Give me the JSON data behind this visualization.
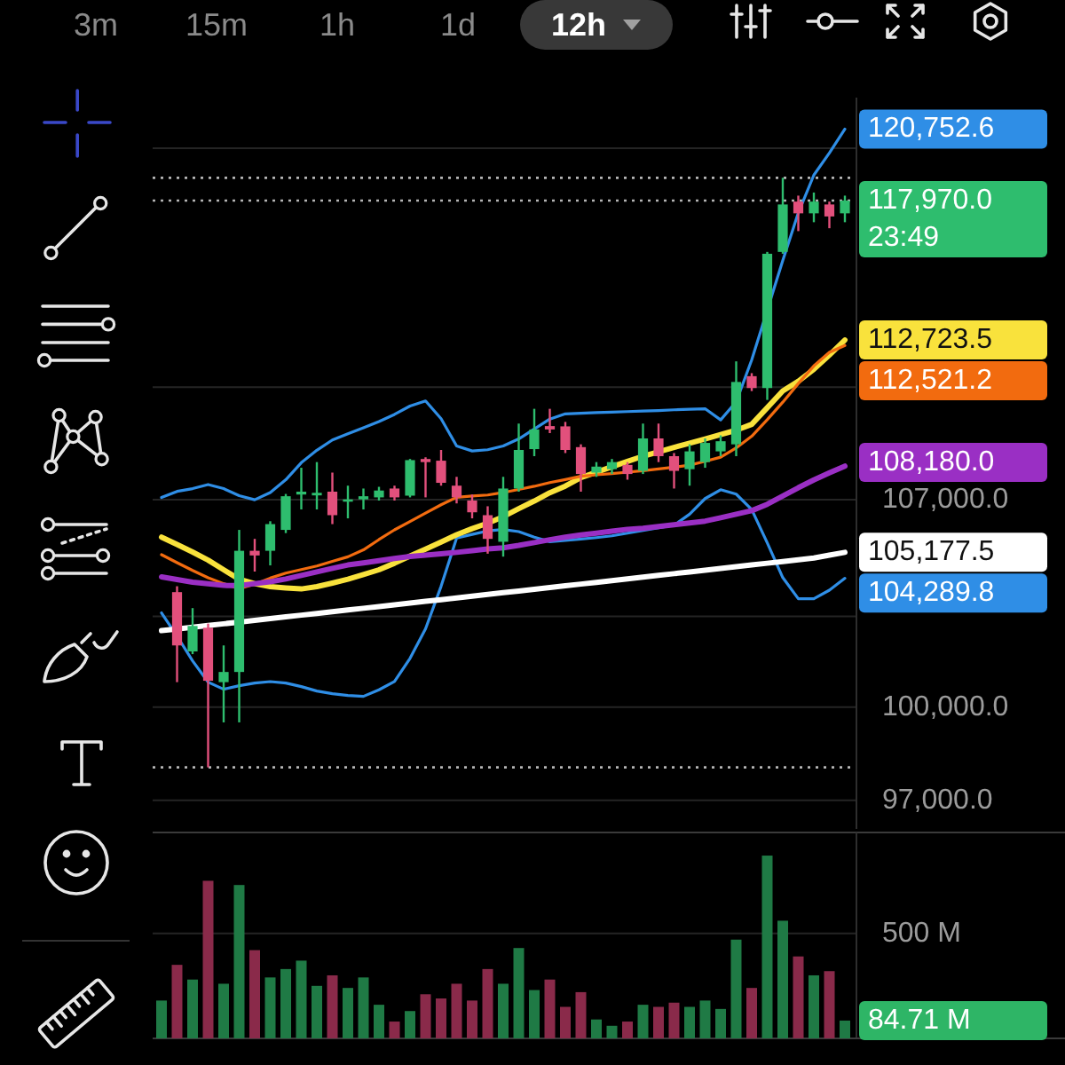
{
  "chart_data": [
    {
      "type": "candlestick",
      "categories": [
        null,
        null,
        null,
        null,
        null,
        null,
        null,
        null,
        null,
        null,
        null,
        null,
        null,
        null,
        null,
        null,
        null,
        null,
        null,
        null,
        null,
        null,
        null,
        null,
        null,
        null,
        null,
        null,
        null,
        null,
        null,
        null,
        null,
        null,
        null,
        null,
        null,
        null,
        null,
        null,
        null,
        null,
        null,
        null,
        null
      ],
      "ohlc": [
        null,
        [
          103820,
          104020,
          100815,
          102030
        ],
        [
          101830,
          103280,
          101740,
          102680
        ],
        [
          102620,
          102760,
          98050,
          100860
        ],
        [
          100815,
          102030,
          99500,
          101150
        ],
        [
          101150,
          105950,
          99500,
          105230
        ],
        [
          105230,
          105640,
          104520,
          105070
        ],
        [
          105230,
          106250,
          104730,
          106150
        ],
        [
          105950,
          107200,
          105840,
          107120
        ],
        [
          107180,
          108120,
          106660,
          107280
        ],
        [
          107150,
          108320,
          106660,
          107240
        ],
        [
          107280,
          107950,
          106150,
          106460
        ],
        [
          106930,
          107490,
          106350,
          107010
        ],
        [
          107010,
          107390,
          106660,
          107120
        ],
        [
          107080,
          107450,
          106970,
          107320
        ],
        [
          107390,
          107490,
          106970,
          107080
        ],
        [
          107140,
          108430,
          107080,
          108390
        ],
        [
          108430,
          108490,
          107080,
          108320
        ],
        [
          108370,
          108750,
          107490,
          107590
        ],
        [
          107490,
          107800,
          106870,
          107080
        ],
        [
          106970,
          107180,
          106350,
          106560
        ],
        [
          106460,
          106770,
          105130,
          105640
        ],
        [
          105540,
          107800,
          105030,
          107390
        ],
        [
          107390,
          109690,
          107280,
          108750
        ],
        [
          108780,
          110220,
          108530,
          109480
        ],
        [
          109600,
          110220,
          109350,
          109480
        ],
        [
          109590,
          109750,
          108640,
          108750
        ],
        [
          108850,
          108950,
          107280,
          107900
        ],
        [
          107950,
          108320,
          107800,
          108160
        ],
        [
          108070,
          108430,
          107900,
          108320
        ],
        [
          108220,
          108320,
          107700,
          107900
        ],
        [
          108010,
          109690,
          107900,
          109160
        ],
        [
          109160,
          109690,
          108320,
          108530
        ],
        [
          108530,
          108640,
          107390,
          108010
        ],
        [
          108070,
          108950,
          107490,
          108700
        ],
        [
          108320,
          109160,
          108120,
          109000
        ],
        [
          108700,
          109270,
          108530,
          109060
        ],
        [
          108950,
          111940,
          108530,
          111190
        ],
        [
          111400,
          111510,
          110860,
          110970
        ],
        [
          110970,
          116010,
          110540,
          115940
        ],
        [
          116010,
          118850,
          115940,
          117820
        ],
        [
          117930,
          118160,
          116800,
          117480
        ],
        [
          117480,
          118280,
          117140,
          117930
        ],
        [
          117820,
          117930,
          116910,
          117360
        ],
        [
          117480,
          118160,
          117140,
          117970
        ]
      ],
      "colors": [
        null,
        "#e2507c",
        "#2ebd6e",
        "#e2507c",
        "#2ebd6e",
        "#2ebd6e",
        "#e2507c",
        "#2ebd6e",
        "#2ebd6e",
        "#2ebd6e",
        "#2ebd6e",
        "#e2507c",
        "#2ebd6e",
        "#2ebd6e",
        "#2ebd6e",
        "#e2507c",
        "#2ebd6e",
        "#e2507c",
        "#e2507c",
        "#e2507c",
        "#e2507c",
        "#e2507c",
        "#2ebd6e",
        "#2ebd6e",
        "#2ebd6e",
        "#e2507c",
        "#e2507c",
        "#e2507c",
        "#2ebd6e",
        "#2ebd6e",
        "#e2507c",
        "#2ebd6e",
        "#e2507c",
        "#e2507c",
        "#2ebd6e",
        "#2ebd6e",
        "#2ebd6e",
        "#2ebd6e",
        "#e2507c",
        "#2ebd6e",
        "#2ebd6e",
        "#e2507c",
        "#2ebd6e",
        "#e2507c",
        "#2ebd6e"
      ],
      "series": [
        {
          "type": "line",
          "color": "#2f8ee6",
          "values": [
            107076,
            107290,
            107386,
            107530,
            107386,
            107138,
            106996,
            107250,
            107698,
            108300,
            108740,
            109105,
            109327,
            109541,
            109764,
            110018,
            110319,
            110504,
            109866,
            108890,
            108714,
            108758,
            108890,
            109143,
            109497,
            109853,
            110038,
            110058,
            110083,
            110102,
            110121,
            110140,
            110159,
            110185,
            110204,
            110223,
            109822,
            110473,
            111993,
            null,
            115686,
            117497,
            118956,
            119814,
            120752.6
          ],
          "value_labels": [
            null,
            null,
            null,
            null,
            null,
            null,
            null,
            null,
            null,
            null,
            null,
            null,
            null,
            null,
            null,
            null,
            null,
            null,
            null,
            null,
            null,
            null,
            null,
            null,
            null,
            null,
            null,
            null,
            null,
            null,
            null,
            null,
            null,
            null,
            null,
            null,
            null,
            null,
            null,
            null,
            null,
            null,
            null,
            null,
            "120,752.6"
          ]
        },
        {
          "type": "line",
          "color": "#2f8ee6",
          "values": [
            103120,
            102340,
            101518,
            100815,
            100582,
            100698,
            100786,
            100833,
            100786,
            100669,
            100524,
            100436,
            100378,
            100349,
            100564,
            100837,
            101600,
            102583,
            104018,
            105670,
            105793,
            105915,
            105964,
            105891,
            105701,
            105542,
            105585,
            105634,
            105683,
            105744,
            105836,
            105928,
            106020,
            106112,
            106494,
            107039,
            107348,
            107194,
            106657,
            105505,
            104314,
            103598,
            103598,
            103886,
            104289.8
          ],
          "value_labels": [
            null,
            null,
            null,
            null,
            null,
            null,
            null,
            null,
            null,
            null,
            null,
            null,
            null,
            null,
            null,
            null,
            null,
            null,
            null,
            null,
            null,
            null,
            null,
            null,
            null,
            null,
            null,
            null,
            null,
            null,
            null,
            null,
            null,
            null,
            null,
            null,
            null,
            null,
            null,
            null,
            null,
            null,
            null,
            null,
            "104,289.8"
          ]
        },
        {
          "type": "line",
          "color": "#f9e23c",
          "values": [
            105701,
            105445,
            105188,
            104909,
            104580,
            104258,
            104108,
            104006,
            103964,
            103928,
            104006,
            104126,
            104258,
            104416,
            104580,
            104804,
            105048,
            105286,
            105530,
            105781,
            105994,
            106183,
            106408,
            106686,
            106952,
            107244,
            107475,
            107775,
            107960,
            108155,
            108343,
            108530,
            108681,
            108840,
            108991,
            109143,
            109295,
            109453,
            109662,
            110261,
            110864,
            111215,
            111650,
            112170,
            112723.5
          ],
          "value_labels": [
            null,
            null,
            null,
            null,
            null,
            null,
            null,
            null,
            null,
            null,
            null,
            null,
            null,
            null,
            null,
            null,
            null,
            null,
            null,
            null,
            null,
            null,
            null,
            null,
            null,
            null,
            null,
            null,
            null,
            null,
            null,
            null,
            null,
            null,
            null,
            null,
            null,
            null,
            null,
            null,
            null,
            null,
            null,
            null,
            "112,723.5"
          ]
        },
        {
          "type": "line",
          "color": "#f26b0f",
          "values": [
            105097,
            104823,
            104556,
            104308,
            104108,
            103940,
            104090,
            104296,
            104465,
            104587,
            104708,
            104866,
            105024,
            105262,
            105616,
            105952,
            106241,
            106531,
            106822,
            107082,
            107126,
            107163,
            107250,
            107356,
            107468,
            107598,
            107704,
            107822,
            107872,
            107916,
            107966,
            108016,
            108079,
            108142,
            108211,
            108349,
            108493,
            108821,
            109237,
            109831,
            110459,
            111134,
            111773,
            112271,
            112521.2
          ],
          "value_labels": [
            null,
            null,
            null,
            null,
            null,
            null,
            null,
            null,
            null,
            null,
            null,
            null,
            null,
            null,
            null,
            null,
            null,
            null,
            null,
            null,
            null,
            null,
            null,
            null,
            null,
            null,
            null,
            null,
            null,
            null,
            null,
            null,
            null,
            null,
            null,
            null,
            null,
            null,
            null,
            null,
            null,
            null,
            null,
            null,
            "112,521.2"
          ]
        },
        {
          "type": "line",
          "color": "#9a2fc4",
          "values": [
            104338,
            104246,
            104156,
            104102,
            104048,
            104042,
            104108,
            104174,
            104265,
            104386,
            104508,
            104629,
            104744,
            104817,
            104890,
            104964,
            105036,
            105079,
            105127,
            105176,
            105231,
            105292,
            105335,
            105414,
            105512,
            105610,
            105701,
            105775,
            105836,
            105903,
            105971,
            106008,
            106069,
            106131,
            106192,
            106254,
            106371,
            106494,
            106617,
            106840,
            107126,
            107418,
            107692,
            107941,
            108180.0
          ],
          "value_labels": [
            null,
            null,
            null,
            null,
            null,
            null,
            null,
            null,
            null,
            null,
            null,
            null,
            null,
            null,
            null,
            null,
            null,
            null,
            null,
            null,
            null,
            null,
            null,
            null,
            null,
            null,
            null,
            null,
            null,
            null,
            null,
            null,
            null,
            null,
            null,
            null,
            null,
            null,
            null,
            null,
            null,
            null,
            null,
            null,
            "108,180.0"
          ]
        },
        {
          "type": "line",
          "color": "#ffffff",
          "values": [
            102523,
            102580,
            102638,
            102695,
            102753,
            102811,
            102869,
            102927,
            102985,
            103043,
            103101,
            103159,
            103217,
            103275,
            103333,
            103391,
            103449,
            103508,
            103566,
            103624,
            103683,
            103741,
            103800,
            103858,
            103917,
            103976,
            104035,
            104093,
            104152,
            104211,
            104270,
            104329,
            104388,
            104448,
            104507,
            104566,
            104626,
            104685,
            104744,
            104804,
            104863,
            104923,
            104982,
            105080,
            105177.5
          ],
          "value_labels": [
            null,
            null,
            null,
            null,
            null,
            null,
            null,
            null,
            null,
            null,
            null,
            null,
            null,
            null,
            null,
            null,
            null,
            null,
            null,
            null,
            null,
            null,
            null,
            null,
            null,
            null,
            null,
            null,
            null,
            null,
            null,
            null,
            null,
            null,
            null,
            null,
            null,
            null,
            null,
            null,
            null,
            null,
            null,
            null,
            "105,177.5"
          ]
        }
      ],
      "ylim": [
        96100,
        122000
      ],
      "log": true,
      "yticks": [
        {
          "value": 97000,
          "label": "97,000.0"
        },
        {
          "value": 100000,
          "label": "100,000.0"
        },
        {
          "value": 103000,
          "label": null
        },
        {
          "value": 107000,
          "label": "107,000.0"
        },
        {
          "value": 111000,
          "label": null
        },
        {
          "value": 120000,
          "label": null
        }
      ],
      "grid": "y",
      "tick_labels": "y",
      "ref_lines": [
        {
          "axis": "y",
          "value": 118850,
          "line_style": "dotted"
        },
        {
          "axis": "y",
          "value": 117970,
          "label": "117,970.0",
          "line_style": "dotted"
        },
        {
          "axis": "y",
          "value": 98050,
          "line_style": "dotted"
        }
      ],
      "annotations": [
        "3m",
        "15m",
        "1h",
        "1d",
        "12h",
        "23:49"
      ]
    },
    {
      "type": "bar",
      "categories": [
        null,
        null,
        null,
        null,
        null,
        null,
        null,
        null,
        null,
        null,
        null,
        null,
        null,
        null,
        null,
        null,
        null,
        null,
        null,
        null,
        null,
        null,
        null,
        null,
        null,
        null,
        null,
        null,
        null,
        null,
        null,
        null,
        null,
        null,
        null,
        null,
        null,
        null,
        null,
        null,
        null,
        null,
        null,
        null,
        null
      ],
      "values": [
        180,
        350,
        280,
        750,
        260,
        730,
        420,
        290,
        330,
        370,
        250,
        300,
        240,
        290,
        160,
        80,
        130,
        210,
        190,
        260,
        180,
        330,
        260,
        430,
        230,
        280,
        150,
        220,
        90,
        60,
        80,
        160,
        150,
        170,
        150,
        180,
        140,
        470,
        240,
        870,
        560,
        390,
        300,
        320,
        84.71
      ],
      "colors": [
        "#1f7a45",
        "#8a2a4a",
        "#1f7a45",
        "#8a2a4a",
        "#1f7a45",
        "#1f7a45",
        "#8a2a4a",
        "#1f7a45",
        "#1f7a45",
        "#1f7a45",
        "#1f7a45",
        "#8a2a4a",
        "#1f7a45",
        "#1f7a45",
        "#1f7a45",
        "#8a2a4a",
        "#1f7a45",
        "#8a2a4a",
        "#8a2a4a",
        "#8a2a4a",
        "#8a2a4a",
        "#8a2a4a",
        "#1f7a45",
        "#1f7a45",
        "#1f7a45",
        "#8a2a4a",
        "#8a2a4a",
        "#8a2a4a",
        "#1f7a45",
        "#1f7a45",
        "#8a2a4a",
        "#1f7a45",
        "#8a2a4a",
        "#8a2a4a",
        "#1f7a45",
        "#1f7a45",
        "#1f7a45",
        "#1f7a45",
        "#8a2a4a",
        "#1f7a45",
        "#1f7a45",
        "#8a2a4a",
        "#1f7a45",
        "#8a2a4a",
        "#1f7a45"
      ],
      "annotations": [
        "84.71 M"
      ],
      "ylim": [
        0,
        980
      ],
      "yticks": [
        {
          "value": 500,
          "label": "500 M"
        }
      ],
      "grid": "y",
      "tick_labels": "y"
    }
  ]
}
